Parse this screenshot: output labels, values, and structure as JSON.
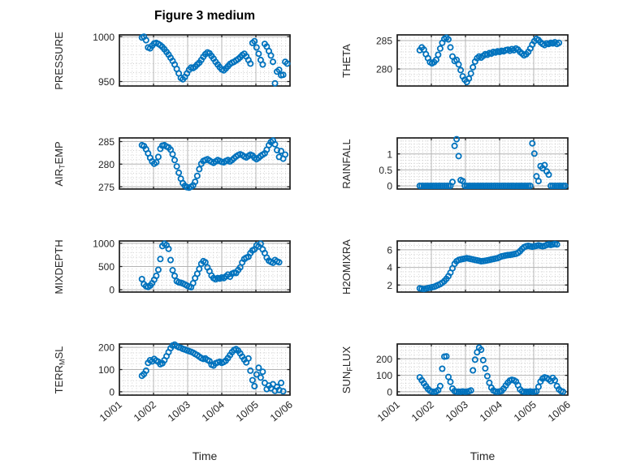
{
  "title": "Figure 3 medium",
  "xlabel": "Time",
  "colors": {
    "marker": "#0072BD",
    "grid_major": "#b4b4b4",
    "grid_minor": "#bdbdbd",
    "frame": "#1e1e1e",
    "text": "#262626",
    "background": "#ffffff"
  },
  "marker": {
    "shape": "circle",
    "radius": 3.1,
    "stroke_width": 1.8
  },
  "x_axis": {
    "lim": [
      1,
      6
    ],
    "tick_values": [
      1,
      2,
      3,
      4,
      5,
      6
    ],
    "tick_labels": [
      "10/01",
      "10/02",
      "10/03",
      "10/04",
      "10/05",
      "10/06"
    ],
    "minor_step": 0.125,
    "label": "Time"
  },
  "chart_data": [
    {
      "type": "scatter",
      "name": "PRESSURE",
      "row": 0,
      "col": 0,
      "ylabel_parts": [
        {
          "text": "PRESSURE",
          "sub": false
        }
      ],
      "ylim": [
        945,
        1002
      ],
      "yticks": [
        950,
        1000
      ],
      "ytick_labels": [
        "950",
        "1000"
      ],
      "y_minor_step": 10,
      "x_start": 1.66,
      "x_step": 0.06,
      "values": [
        999,
        1000,
        996,
        988,
        987,
        990,
        992.5,
        993,
        992,
        990.5,
        988.5,
        986,
        983,
        980,
        976.5,
        973,
        969,
        964,
        959,
        954,
        952.5,
        955,
        959,
        963,
        965.5,
        965,
        966.5,
        969,
        971,
        974,
        977.5,
        980.5,
        982.5,
        981.5,
        978.5,
        975.5,
        972,
        969,
        966,
        963.5,
        962.5,
        964.5,
        967,
        969.5,
        971,
        972,
        973.5,
        975,
        977,
        979.5,
        981,
        978,
        974,
        970,
        993,
        995,
        988,
        981,
        974,
        969,
        992,
        989,
        984,
        979,
        972,
        948,
        961,
        963,
        957,
        957.5,
        972,
        970
      ]
    },
    {
      "type": "scatter",
      "name": "THETA",
      "row": 0,
      "col": 1,
      "ylabel_parts": [
        {
          "text": "THETA",
          "sub": false
        }
      ],
      "ylim": [
        277,
        286
      ],
      "yticks": [
        280,
        285
      ],
      "ytick_labels": [
        "280",
        "285"
      ],
      "y_minor_step": 1,
      "x_start": 1.66,
      "x_step": 0.06,
      "values": [
        283.3,
        283.8,
        283.4,
        282.6,
        281.9,
        281.2,
        281.0,
        281.2,
        281.6,
        282.5,
        283.6,
        284.6,
        285.3,
        285.5,
        285.2,
        283.8,
        282.2,
        281.4,
        281.6,
        280.8,
        279.8,
        278.7,
        278.1,
        277.7,
        278.3,
        279.2,
        280.3,
        281.3,
        281.9,
        282.2,
        282.0,
        282.3,
        282.6,
        282.5,
        282.8,
        282.7,
        283.0,
        282.9,
        283.1,
        283.0,
        283.2,
        283.1,
        283.3,
        283.4,
        283.2,
        283.5,
        283.3,
        283.6,
        283.4,
        283.0,
        282.7,
        282.4,
        282.6,
        283.0,
        283.6,
        284.3,
        284.9,
        285.3,
        285.1,
        284.7,
        284.4,
        284.2,
        284.5,
        284.4,
        284.6,
        284.5,
        284.7,
        284.4,
        284.6
      ]
    },
    {
      "type": "scatter",
      "name": "AIR_TEMP",
      "row": 1,
      "col": 0,
      "ylabel_parts": [
        {
          "text": "AIR",
          "sub": false
        },
        {
          "text": "T",
          "sub": true
        },
        {
          "text": "EMP",
          "sub": false
        }
      ],
      "ylim": [
        274.5,
        285.8
      ],
      "yticks": [
        275,
        280,
        285
      ],
      "ytick_labels": [
        "275",
        "280",
        "285"
      ],
      "y_minor_step": 1,
      "x_start": 1.66,
      "x_step": 0.06,
      "values": [
        284.2,
        284.0,
        283.3,
        282.4,
        281.4,
        280.6,
        280.1,
        280.4,
        281.6,
        283.4,
        284.1,
        284.2,
        283.9,
        283.7,
        283.2,
        282.2,
        280.9,
        279.5,
        278.1,
        276.8,
        275.8,
        275.2,
        274.9,
        274.8,
        275.0,
        275.3,
        276.1,
        277.4,
        278.9,
        280.1,
        280.7,
        280.9,
        281.1,
        280.8,
        280.5,
        280.3,
        280.6,
        280.9,
        280.7,
        280.5,
        280.4,
        280.7,
        280.9,
        280.6,
        280.9,
        281.3,
        281.7,
        282.0,
        282.2,
        282.0,
        281.7,
        281.5,
        281.8,
        282.1,
        281.9,
        281.4,
        281.1,
        281.4,
        281.8,
        282.1,
        282.4,
        283.2,
        284.2,
        284.9,
        285.2,
        284.4,
        283.1,
        281.6,
        282.9,
        281.2,
        282.1
      ]
    },
    {
      "type": "scatter",
      "name": "RAINFALL",
      "row": 1,
      "col": 1,
      "ylabel_parts": [
        {
          "text": "RAINFALL",
          "sub": false
        }
      ],
      "ylim": [
        -0.1,
        1.5
      ],
      "yticks": [
        0,
        0.5,
        1
      ],
      "ytick_labels": [
        "0",
        "0.5",
        "1"
      ],
      "y_minor_step": 0.1,
      "x_start": 1.66,
      "x_step": 0.06,
      "values": [
        0,
        0,
        0,
        0,
        0,
        0,
        0,
        0,
        0,
        0,
        0,
        0,
        0,
        0,
        0,
        0,
        0.12,
        1.25,
        1.46,
        0.93,
        0.18,
        0.15,
        0,
        0,
        0,
        0,
        0,
        0,
        0,
        0,
        0,
        0,
        0,
        0,
        0,
        0,
        0,
        0,
        0,
        0,
        0,
        0,
        0,
        0,
        0,
        0,
        0,
        0,
        0,
        0,
        0,
        0,
        0,
        0,
        0,
        1.33,
        1.01,
        0.3,
        0.15,
        0.62,
        0.55,
        0.65,
        0.45,
        0.35,
        0,
        0,
        0,
        0,
        0,
        0,
        0,
        0
      ]
    },
    {
      "type": "scatter",
      "name": "MIXDEPTH",
      "row": 2,
      "col": 0,
      "ylabel_parts": [
        {
          "text": "MIXDEPTH",
          "sub": false
        }
      ],
      "ylim": [
        -50,
        1050
      ],
      "yticks": [
        0,
        500,
        1000
      ],
      "ytick_labels": [
        "0",
        "500",
        "1000"
      ],
      "y_minor_step": 100,
      "x_start": 1.66,
      "x_step": 0.06,
      "values": [
        230,
        120,
        75,
        60,
        90,
        140,
        215,
        300,
        430,
        660,
        940,
        990,
        960,
        880,
        640,
        420,
        300,
        185,
        160,
        150,
        135,
        115,
        90,
        65,
        55,
        140,
        250,
        345,
        450,
        560,
        615,
        590,
        480,
        400,
        305,
        250,
        225,
        250,
        240,
        265,
        250,
        285,
        325,
        280,
        345,
        365,
        360,
        425,
        480,
        585,
        660,
        690,
        710,
        790,
        845,
        870,
        955,
        930,
        990,
        870,
        790,
        690,
        625,
        600,
        580,
        640,
        610,
        590
      ]
    },
    {
      "type": "scatter",
      "name": "H2OMIXRA",
      "row": 2,
      "col": 1,
      "ylabel_parts": [
        {
          "text": "H2OMIXRA",
          "sub": false
        }
      ],
      "ylim": [
        1.2,
        7.0
      ],
      "yticks": [
        2,
        4,
        6
      ],
      "ytick_labels": [
        "2",
        "4",
        "6"
      ],
      "y_minor_step": 0.5,
      "x_start": 1.66,
      "x_step": 0.06,
      "values": [
        1.62,
        1.58,
        1.55,
        1.6,
        1.65,
        1.7,
        1.75,
        1.8,
        1.9,
        2.0,
        2.1,
        2.25,
        2.45,
        2.7,
        3.0,
        3.4,
        3.9,
        4.4,
        4.7,
        4.85,
        4.9,
        4.95,
        5.0,
        5.05,
        5.0,
        4.95,
        4.9,
        4.85,
        4.8,
        4.75,
        4.7,
        4.72,
        4.75,
        4.8,
        4.85,
        4.9,
        4.95,
        5.0,
        5.05,
        5.15,
        5.25,
        5.3,
        5.35,
        5.4,
        5.42,
        5.45,
        5.5,
        5.55,
        5.65,
        5.85,
        6.1,
        6.3,
        6.4,
        6.45,
        6.4,
        6.35,
        6.4,
        6.45,
        6.5,
        6.45,
        6.4,
        6.45,
        6.55,
        6.6,
        6.55,
        6.6,
        6.65,
        6.6
      ]
    },
    {
      "type": "scatter",
      "name": "TERR_MSL",
      "row": 3,
      "col": 0,
      "ylabel_parts": [
        {
          "text": "TERR",
          "sub": false
        },
        {
          "text": "M",
          "sub": true
        },
        {
          "text": "SL",
          "sub": false
        }
      ],
      "ylim": [
        -15,
        215
      ],
      "yticks": [
        0,
        100,
        200
      ],
      "ytick_labels": [
        "0",
        "100",
        "200"
      ],
      "y_minor_step": 25,
      "x_start": 1.66,
      "x_step": 0.06,
      "values": [
        72,
        80,
        95,
        130,
        142,
        137,
        148,
        140,
        135,
        124,
        128,
        142,
        160,
        178,
        196,
        208,
        212,
        206,
        200,
        198,
        193,
        190,
        186,
        183,
        180,
        176,
        170,
        165,
        158,
        152,
        148,
        150,
        143,
        138,
        122,
        118,
        128,
        132,
        135,
        130,
        134,
        140,
        152,
        165,
        178,
        188,
        192,
        185,
        173,
        158,
        145,
        132,
        150,
        95,
        52,
        25,
        78,
        108,
        64,
        90,
        40,
        12,
        28,
        16,
        34,
        4,
        22,
        8,
        40,
        2
      ]
    },
    {
      "type": "scatter",
      "name": "SUN_FLUX",
      "row": 3,
      "col": 1,
      "ylabel_parts": [
        {
          "text": "SUN",
          "sub": false
        },
        {
          "text": "F",
          "sub": true
        },
        {
          "text": "LUX",
          "sub": false
        }
      ],
      "ylim": [
        -20,
        290
      ],
      "yticks": [
        0,
        100,
        200
      ],
      "ytick_labels": [
        "0",
        "100",
        "200"
      ],
      "y_minor_step": 25,
      "x_start": 1.66,
      "x_step": 0.06,
      "values": [
        88,
        70,
        52,
        34,
        18,
        6,
        1,
        0,
        2,
        10,
        35,
        140,
        213,
        215,
        90,
        60,
        20,
        4,
        0,
        1,
        0,
        2,
        0,
        1,
        3,
        8,
        130,
        195,
        240,
        268,
        255,
        192,
        142,
        95,
        55,
        25,
        8,
        1,
        0,
        2,
        5,
        20,
        38,
        55,
        68,
        73,
        70,
        62,
        40,
        15,
        3,
        0,
        1,
        0,
        2,
        0,
        1,
        3,
        30,
        62,
        80,
        88,
        84,
        76,
        65,
        85,
        70,
        35,
        15,
        4,
        0
      ]
    }
  ]
}
